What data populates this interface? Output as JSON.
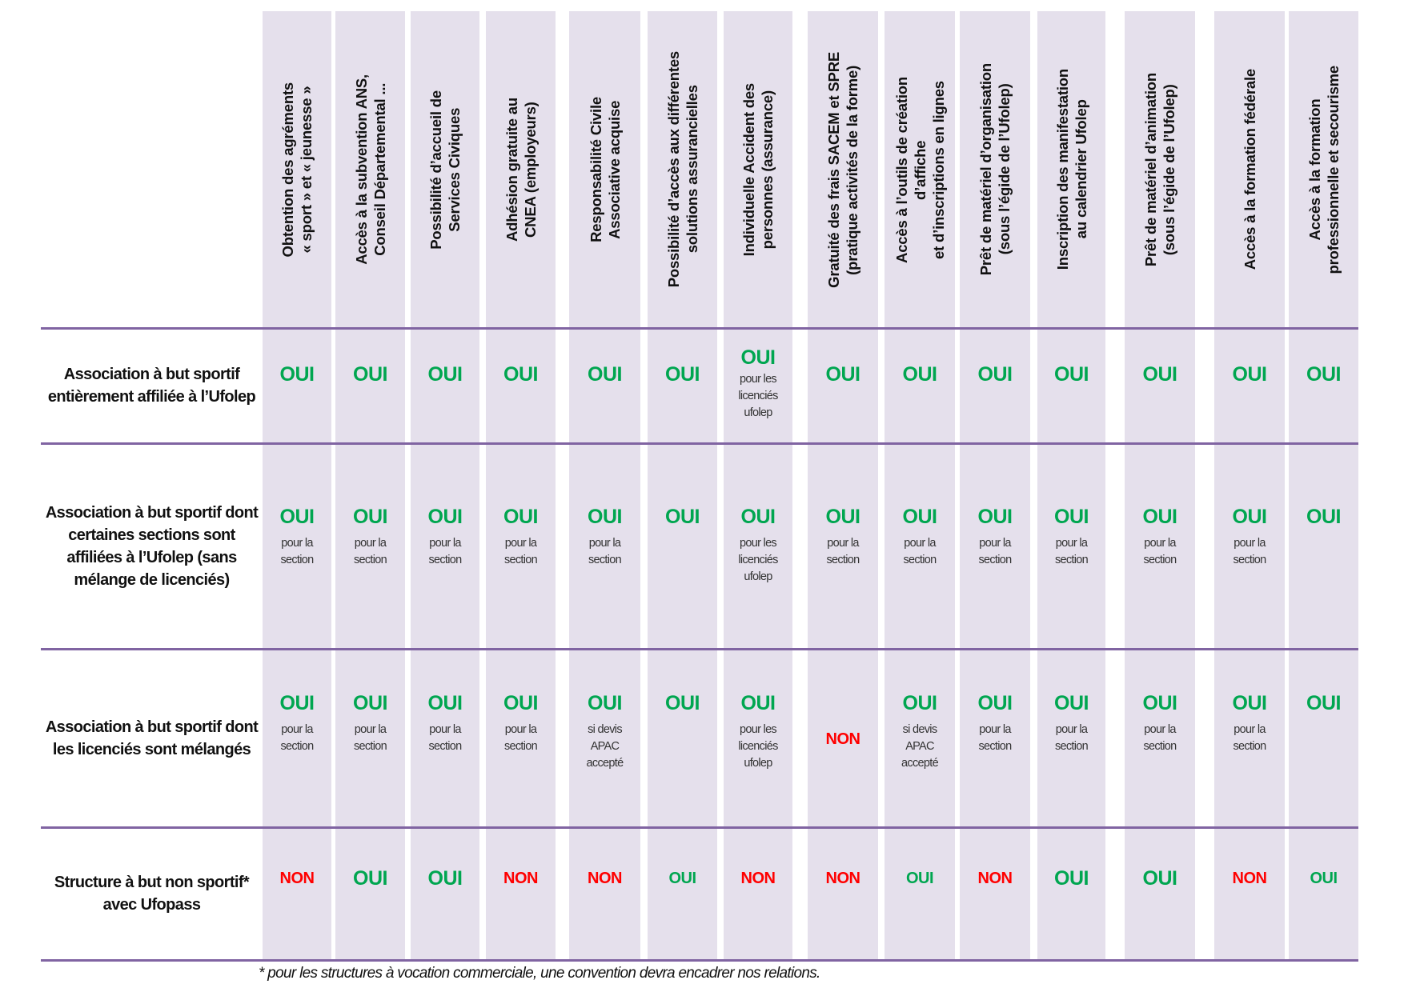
{
  "colors": {
    "column_bg": "#e5e0ec",
    "divider": "#8064a2",
    "yes": "#00a650",
    "no": "#ff0000"
  },
  "columns": [
    "Obtention des agréments\n« sport » et « jeunesse »",
    "Accès à la subvention ANS,\nConseil Départemental ...",
    "Possibilité d’accueil de\nServices Civiques",
    "Adhésion gratuite au\nCNEA (employeurs)",
    "Responsabilité Civile\nAssociative acquise",
    "Possibilité d’accès aux différentes\nsolutions assurancielles",
    "Individuelle Accident des\npersonnes (assurance)",
    "Gratuité des frais SACEM et SPRE\n(pratique activités de la forme)",
    "Accès à l’outils de création\nd’affiche\net d’inscriptions en lignes",
    "Prêt de matériel d’organisation\n(sous l’égide de l’Ufolep)",
    "Inscription des manifestation\nau calendrier Ufolep",
    "Prêt de matériel d’animation\n(sous l’égide de l’Ufolep)",
    "Accès à la formation fédérale",
    "Accès à la formation\nprofessionnelle et secourisme"
  ],
  "rows": [
    {
      "label": "Association à but sportif entièrement affiliée à l’Ufolep",
      "cells": [
        {
          "v": "OUI"
        },
        {
          "v": "OUI"
        },
        {
          "v": "OUI"
        },
        {
          "v": "OUI"
        },
        {
          "v": "OUI"
        },
        {
          "v": "OUI"
        },
        {
          "v": "OUI",
          "note": "pour les\nlicenciés\nufolep"
        },
        {
          "v": "OUI"
        },
        {
          "v": "OUI"
        },
        {
          "v": "OUI"
        },
        {
          "v": "OUI"
        },
        {
          "v": "OUI"
        },
        {
          "v": "OUI"
        },
        {
          "v": "OUI"
        }
      ]
    },
    {
      "label": "Association à but sportif dont certaines sections sont affiliées à l’Ufolep (sans mélange de licenciés)",
      "cells": [
        {
          "v": "OUI",
          "note": "pour la\nsection"
        },
        {
          "v": "OUI",
          "note": "pour la\nsection"
        },
        {
          "v": "OUI",
          "note": "pour la\nsection"
        },
        {
          "v": "OUI",
          "note": "pour la\nsection"
        },
        {
          "v": "OUI",
          "note": "pour la\nsection"
        },
        {
          "v": "OUI"
        },
        {
          "v": "OUI",
          "note": "pour les\nlicenciés\nufolep"
        },
        {
          "v": "OUI",
          "note": "pour la\nsection"
        },
        {
          "v": "OUI",
          "note": "pour la\nsection"
        },
        {
          "v": "OUI",
          "note": "pour la\nsection"
        },
        {
          "v": "OUI",
          "note": "pour la\nsection"
        },
        {
          "v": "OUI",
          "note": "pour la\nsection"
        },
        {
          "v": "OUI",
          "note": "pour la\nsection"
        },
        {
          "v": "OUI"
        }
      ]
    },
    {
      "label": "Association à but sportif dont les licenciés sont mélangés",
      "cells": [
        {
          "v": "OUI",
          "note": "pour la\nsection"
        },
        {
          "v": "OUI",
          "note": "pour la\nsection"
        },
        {
          "v": "OUI",
          "note": "pour la\nsection"
        },
        {
          "v": "OUI",
          "note": "pour la\nsection"
        },
        {
          "v": "OUI",
          "note": "si devis\nAPAC\naccepté"
        },
        {
          "v": "OUI"
        },
        {
          "v": "OUI",
          "note": "pour les\nlicenciés\nufolep"
        },
        {
          "v": "NON"
        },
        {
          "v": "OUI",
          "note": "si devis\nAPAC\naccepté"
        },
        {
          "v": "OUI",
          "note": "pour la\nsection"
        },
        {
          "v": "OUI",
          "note": "pour la\nsection"
        },
        {
          "v": "OUI",
          "note": "pour la\nsection"
        },
        {
          "v": "OUI",
          "note": "pour la\nsection"
        },
        {
          "v": "OUI"
        }
      ]
    },
    {
      "label": "Structure à but non sportif* avec Ufopass",
      "cells": [
        {
          "v": "NON"
        },
        {
          "v": "OUI"
        },
        {
          "v": "OUI"
        },
        {
          "v": "NON"
        },
        {
          "v": "NON"
        },
        {
          "v": "OUI",
          "small": true
        },
        {
          "v": "NON"
        },
        {
          "v": "NON"
        },
        {
          "v": "OUI",
          "small": true
        },
        {
          "v": "NON"
        },
        {
          "v": "OUI"
        },
        {
          "v": "OUI"
        },
        {
          "v": "NON"
        },
        {
          "v": "OUI",
          "small": true
        }
      ]
    }
  ],
  "footnote": "* pour les structures à vocation commerciale, une convention devra encadrer nos relations."
}
